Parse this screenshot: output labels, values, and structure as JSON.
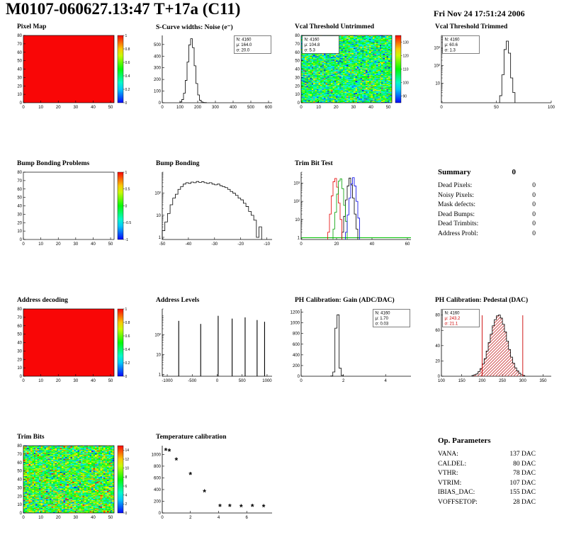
{
  "header": {
    "title": "M0107-060627.13:47 T+17a (C11)",
    "date": "Fri Nov 24 17:51:24 2006"
  },
  "summary": {
    "title": "Summary",
    "total": "0",
    "rows": [
      {
        "label": "Dead Pixels:",
        "value": "0"
      },
      {
        "label": "Noisy Pixels:",
        "value": "0"
      },
      {
        "label": "Mask defects:",
        "value": "0"
      },
      {
        "label": "Dead Bumps:",
        "value": "0"
      },
      {
        "label": "Dead Trimbits:",
        "value": "0"
      },
      {
        "label": "Address Probl:",
        "value": "0"
      }
    ]
  },
  "op_parameters": {
    "title": "Op. Parameters",
    "rows": [
      {
        "label": "VANA:",
        "value": "137 DAC"
      },
      {
        "label": "CALDEL:",
        "value": "80 DAC"
      },
      {
        "label": "VTHR:",
        "value": "78 DAC"
      },
      {
        "label": "VTRIM:",
        "value": "107 DAC"
      },
      {
        "label": "IBIAS_DAC:",
        "value": "155 DAC"
      },
      {
        "label": "VOFFSETOP:",
        "value": "28 DAC"
      }
    ]
  },
  "chart_data": [
    {
      "id": "pixel-map",
      "type": "heatmap",
      "title": "Pixel Map",
      "xlim": [
        0,
        52
      ],
      "ylim": [
        0,
        80
      ],
      "xticks": [
        0,
        10,
        20,
        30,
        40,
        50
      ],
      "yticks": [
        0,
        10,
        20,
        30,
        40,
        50,
        60,
        70,
        80
      ],
      "colorbar": true,
      "z": {
        "min": 0,
        "max": 1,
        "ticks": [
          0,
          0.2,
          0.4,
          0.6,
          0.8,
          1
        ]
      },
      "map": {
        "mode": "uniform",
        "value": 1
      }
    },
    {
      "id": "scurve-noise",
      "type": "histogram",
      "title": "S-Curve widths: Noise (e⁻)",
      "xlim": [
        0,
        620
      ],
      "xticks": [
        0,
        100,
        200,
        300,
        400,
        500,
        600
      ],
      "yscale": "lin",
      "ylim": [
        0,
        578
      ],
      "yticks": [
        0,
        100,
        200,
        300,
        400,
        500
      ],
      "bins": {
        "start": 100,
        "width": 10,
        "counts": [
          7,
          27,
          82,
          192,
          350,
          497,
          550,
          473,
          317,
          165,
          67,
          21,
          7,
          2,
          1
        ]
      },
      "stats": {
        "pos": "tr",
        "n": "4160",
        "mu": "164.0",
        "sigma": "20.0"
      }
    },
    {
      "id": "vcal-untrimmed",
      "type": "heatmap",
      "title": "Vcal Threshold Untrimmed",
      "xlim": [
        0,
        52
      ],
      "ylim": [
        0,
        80
      ],
      "xticks": [
        0,
        10,
        20,
        30,
        40,
        50
      ],
      "yticks": [
        0,
        10,
        20,
        30,
        40,
        50,
        60,
        70,
        80
      ],
      "colorbar": true,
      "z": {
        "min": 85,
        "max": 135,
        "ticks": [
          90,
          100,
          110,
          120,
          130
        ]
      },
      "map": {
        "mode": "noise",
        "mu": 0.42,
        "k": 1.1,
        "seed": 7
      },
      "stats": {
        "pos": "tl",
        "n": "4160",
        "mu": "104.8",
        "sigma": "5.3"
      }
    },
    {
      "id": "vcal-trimmed",
      "type": "histogram",
      "title": "Vcal Threshold Trimmed",
      "xlim": [
        0,
        100
      ],
      "xticks": [
        0,
        50,
        100
      ],
      "yscale": "log",
      "ylog": {
        "min": 0.8,
        "max": 5000,
        "labels": [
          [
            10,
            "10"
          ],
          [
            100,
            "10²"
          ],
          [
            1000,
            "10³"
          ]
        ]
      },
      "bins": {
        "start": 53,
        "width": 2,
        "counts": [
          2,
          30,
          800,
          2400,
          500,
          20,
          3
        ]
      },
      "stats": {
        "pos": "tl",
        "n": "4160",
        "mu": "60.6",
        "sigma": "1.3"
      }
    },
    {
      "id": "bump-bonding-problems",
      "type": "heatmap",
      "title": "Bump Bonding Problems",
      "xlim": [
        0,
        52
      ],
      "ylim": [
        0,
        80
      ],
      "xticks": [
        0,
        10,
        20,
        30,
        40,
        50
      ],
      "yticks": [
        0,
        10,
        20,
        30,
        40,
        50,
        60,
        70,
        80
      ],
      "colorbar": true,
      "z": {
        "min": -1,
        "max": 1,
        "ticks": [
          -1,
          -0.5,
          0,
          0.5,
          1
        ]
      },
      "map": {
        "mode": "empty"
      }
    },
    {
      "id": "bump-bonding",
      "type": "histogram",
      "title": "Bump Bonding",
      "xlim": [
        -50,
        -8
      ],
      "xticks": [
        -50,
        -40,
        -30,
        -20,
        -10
      ],
      "yscale": "log",
      "ylog": {
        "min": 0.8,
        "max": 900,
        "labels": [
          [
            1,
            "1"
          ],
          [
            10,
            "10"
          ],
          [
            100,
            "10²"
          ]
        ]
      },
      "bins": {
        "start": -50,
        "width": 1,
        "counts": [
          2,
          5,
          12,
          30,
          60,
          90,
          150,
          200,
          260,
          300,
          280,
          320,
          300,
          340,
          310,
          330,
          300,
          280,
          300,
          260,
          240,
          260,
          220,
          200,
          180,
          150,
          120,
          100,
          80,
          60,
          50,
          35,
          25,
          15,
          10,
          6,
          1,
          3
        ]
      }
    },
    {
      "id": "trim-bit-test",
      "type": "histogram-multi",
      "title": "Trim Bit Test",
      "xlim": [
        0,
        62
      ],
      "xticks": [
        0,
        20,
        40,
        60
      ],
      "yscale": "log",
      "ylog": {
        "min": 0.8,
        "max": 4000,
        "labels": [
          [
            1,
            "1"
          ],
          [
            10,
            "10"
          ],
          [
            100,
            "10²"
          ],
          [
            1000,
            "10³"
          ]
        ]
      },
      "series": [
        {
          "name": "black",
          "color": "#000000",
          "start": 23,
          "width": 1,
          "counts": [
            2,
            15,
            120,
            700,
            1900,
            800,
            150,
            20,
            3
          ]
        },
        {
          "name": "red",
          "color": "#e60000",
          "start": 15,
          "width": 1,
          "counts": [
            2,
            20,
            200,
            1200,
            1800,
            600,
            80,
            10
          ]
        },
        {
          "name": "green",
          "color": "#00a000",
          "start": 18,
          "width": 1,
          "counts": [
            3,
            25,
            250,
            1300,
            1700,
            500,
            60,
            8
          ]
        },
        {
          "name": "blue",
          "color": "#0000e6",
          "start": 25,
          "width": 1,
          "counts": [
            2,
            18,
            150,
            900,
            2000,
            700,
            100,
            12
          ]
        }
      ],
      "baseline": {
        "color": "#00c000",
        "y": 1
      }
    },
    {
      "id": "address-decoding",
      "type": "heatmap",
      "title": "Address decoding",
      "xlim": [
        0,
        52
      ],
      "ylim": [
        0,
        80
      ],
      "xticks": [
        0,
        10,
        20,
        30,
        40,
        50
      ],
      "yticks": [
        0,
        10,
        20,
        30,
        40,
        50,
        60,
        70,
        80
      ],
      "colorbar": true,
      "z": {
        "min": 0,
        "max": 1,
        "ticks": [
          0,
          0.2,
          0.4,
          0.6,
          0.8,
          1
        ]
      },
      "map": {
        "mode": "uniform",
        "value": 1
      }
    },
    {
      "id": "address-levels",
      "type": "spikes",
      "title": "Address Levels",
      "xlim": [
        -1100,
        1100
      ],
      "xticks": [
        -1000,
        -500,
        0,
        500,
        1000
      ],
      "yscale": "log",
      "ylog": {
        "min": 0.8,
        "max": 2000,
        "labels": [
          [
            1,
            "1"
          ],
          [
            10,
            "10"
          ],
          [
            100,
            "10²"
          ]
        ]
      },
      "spikes": [
        [
          -770,
          500
        ],
        [
          -330,
          350
        ],
        [
          20,
          900
        ],
        [
          300,
          650
        ],
        [
          560,
          750
        ],
        [
          800,
          550
        ],
        [
          950,
          450
        ]
      ]
    },
    {
      "id": "ph-gain",
      "type": "histogram",
      "title": "PH Calibration: Gain (ADC/DAC)",
      "xlim": [
        0,
        5.2
      ],
      "xticks": [
        0,
        2,
        4
      ],
      "yscale": "lin",
      "ylim": [
        0,
        1260
      ],
      "yticks": [
        0,
        200,
        400,
        600,
        800,
        1000,
        1200
      ],
      "bins": {
        "start": 1.4,
        "width": 0.1,
        "counts": [
          5,
          80,
          900,
          1150,
          150,
          15
        ]
      },
      "stats": {
        "pos": "tr",
        "n": "4160",
        "mu": "1.70",
        "sigma": "0.03"
      }
    },
    {
      "id": "ph-pedestal",
      "type": "histogram",
      "title": "PH Calibration: Pedestal (DAC)",
      "xlim": [
        100,
        370
      ],
      "xticks": [
        100,
        150,
        200,
        250,
        300,
        350
      ],
      "yscale": "lin",
      "ylim": [
        0,
        88
      ],
      "yticks": [
        0,
        20,
        40,
        60,
        80
      ],
      "fill": "hatch",
      "fill_color": "#d05050",
      "bins": {
        "start": 175,
        "width": 5,
        "counts": [
          1,
          2,
          3,
          6,
          10,
          16,
          23,
          33,
          44,
          55,
          66,
          74,
          79,
          80,
          76,
          68,
          58,
          46,
          35,
          25,
          17,
          11,
          7,
          4,
          2,
          1
        ]
      },
      "marks": [
        200,
        300
      ],
      "stats": {
        "pos": "tl",
        "n": "4160",
        "mu": "243.2",
        "sigma": "21.1",
        "accent": "#cc0000"
      }
    },
    {
      "id": "trim-bits",
      "type": "heatmap",
      "title": "Trim Bits",
      "xlim": [
        0,
        52
      ],
      "ylim": [
        0,
        80
      ],
      "xticks": [
        0,
        10,
        20,
        30,
        40,
        50
      ],
      "yticks": [
        0,
        10,
        20,
        30,
        40,
        50,
        60,
        70,
        80
      ],
      "colorbar": true,
      "z": {
        "min": 0,
        "max": 15,
        "ticks": [
          0,
          2,
          4,
          6,
          8,
          10,
          12,
          14
        ]
      },
      "map": {
        "mode": "noise",
        "mu": 0.5,
        "k": 1.2,
        "seed": 13
      }
    },
    {
      "id": "temperature-calibration",
      "type": "scatter",
      "title": "Temperature calibration",
      "xlim": [
        0,
        7.8
      ],
      "xticks": [
        0,
        2,
        4,
        6
      ],
      "yscale": "lin",
      "ylim": [
        0,
        1150
      ],
      "yticks": [
        0,
        200,
        400,
        600,
        800,
        1000
      ],
      "marker": "*",
      "points": [
        [
          0.25,
          1060
        ],
        [
          0.5,
          1045
        ],
        [
          1,
          895
        ],
        [
          2,
          645
        ],
        [
          3,
          350
        ],
        [
          4.1,
          105
        ],
        [
          4.8,
          100
        ],
        [
          5.6,
          98
        ],
        [
          6.4,
          100
        ],
        [
          7.2,
          95
        ]
      ]
    }
  ]
}
